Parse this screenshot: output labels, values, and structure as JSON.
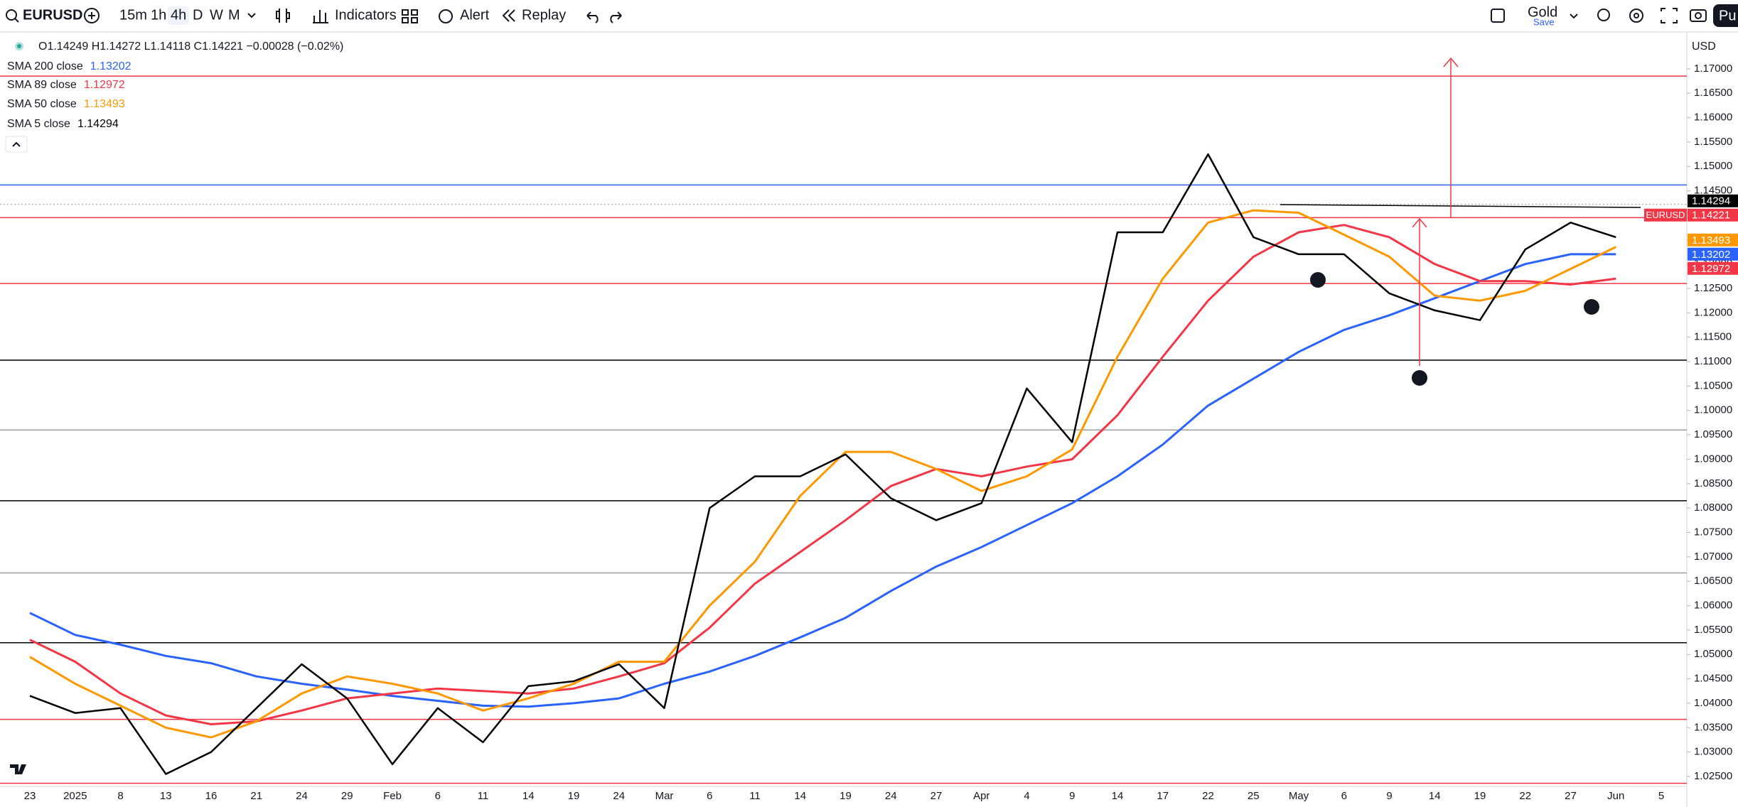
{
  "toolbar": {
    "symbol": "EURUSD",
    "intervals": [
      "15m",
      "1h",
      "4h",
      "D",
      "W",
      "M"
    ],
    "indicators": "Indicators",
    "alert": "Alert",
    "replay": "Replay",
    "layout": "Gold",
    "save": "Save",
    "publish": "Pu"
  },
  "chart_data": {
    "type": "line",
    "symbol": "EURUSD",
    "ohlc": "O1.14249 H1.14272 L1.14118 C1.14221 −0.00028 (−0.02%)",
    "currency": "USD",
    "last_price": 1.14221,
    "last_color": "#f23645",
    "categories": [
      "23",
      "2025",
      "8",
      "13",
      "16",
      "21",
      "24",
      "29",
      "Feb",
      "6",
      "11",
      "14",
      "19",
      "24",
      "Mar",
      "6",
      "11",
      "14",
      "19",
      "24",
      "27",
      "Apr",
      "4",
      "9",
      "14",
      "17",
      "22",
      "25",
      "May",
      "6",
      "9",
      "14",
      "19",
      "22",
      "27",
      "Jun",
      "5"
    ],
    "series": [
      {
        "name": "SMA 200 close",
        "color": "#2962ff",
        "last": 1.13202,
        "values": [
          1.0585,
          1.054,
          1.052,
          1.0497,
          1.0482,
          1.0455,
          1.044,
          1.0428,
          1.0415,
          1.0405,
          1.0395,
          1.0393,
          1.04,
          1.041,
          1.044,
          1.0465,
          1.0497,
          1.0535,
          1.0575,
          1.063,
          1.068,
          1.072,
          1.0765,
          1.081,
          1.0865,
          1.093,
          1.101,
          1.1065,
          1.112,
          1.1165,
          1.1195,
          1.123,
          1.1265,
          1.13,
          1.132,
          1.132,
          null
        ]
      },
      {
        "name": "SMA 89 close",
        "color": "#f23645",
        "last": 1.12972,
        "values": [
          1.053,
          1.0485,
          1.042,
          1.0375,
          1.0357,
          1.0363,
          1.0385,
          1.041,
          1.042,
          1.043,
          1.0425,
          1.042,
          1.043,
          1.0455,
          1.0482,
          1.0555,
          1.0645,
          1.071,
          1.0775,
          1.0845,
          1.088,
          1.0865,
          1.0885,
          1.09,
          1.099,
          1.111,
          1.1225,
          1.1315,
          1.1365,
          1.138,
          1.1355,
          1.13,
          1.1265,
          1.1265,
          1.1258,
          1.127,
          null
        ]
      },
      {
        "name": "SMA 50 close",
        "color": "#ff9800",
        "last": 1.13493,
        "values": [
          1.0495,
          1.044,
          1.0395,
          1.035,
          1.033,
          1.0363,
          1.042,
          1.0455,
          1.044,
          1.042,
          1.0385,
          1.041,
          1.044,
          1.0485,
          1.0485,
          1.06,
          1.069,
          1.0825,
          1.0915,
          1.0915,
          1.088,
          1.0835,
          1.0865,
          1.092,
          1.111,
          1.127,
          1.1385,
          1.141,
          1.1405,
          1.136,
          1.1315,
          1.1235,
          1.1225,
          1.1245,
          1.129,
          1.1335,
          null
        ]
      },
      {
        "name": "SMA 5 close",
        "color": "#000000",
        "last": 1.14294,
        "values": [
          1.0415,
          1.038,
          1.039,
          1.0255,
          1.03,
          1.039,
          1.048,
          1.041,
          1.0275,
          1.039,
          1.032,
          1.0435,
          1.0445,
          1.048,
          1.039,
          1.08,
          1.0865,
          1.0865,
          1.091,
          1.082,
          1.0775,
          1.081,
          1.1045,
          1.0935,
          1.1365,
          1.1365,
          1.1525,
          1.1355,
          1.132,
          1.132,
          1.124,
          1.1205,
          1.1185,
          1.133,
          1.1385,
          1.1355,
          null
        ]
      }
    ],
    "ylim": [
      1.02296,
      1.17726
    ],
    "yticks": [
      {
        "value": 1.17,
        "label": "1.17000"
      },
      {
        "value": 1.165,
        "label": "1.16500"
      },
      {
        "value": 1.16,
        "label": "1.16000"
      },
      {
        "value": 1.155,
        "label": "1.15500"
      },
      {
        "value": 1.15,
        "label": "1.15000"
      },
      {
        "value": 1.145,
        "label": "1.14500"
      },
      {
        "value": 1.14,
        "label": "1.14000"
      },
      {
        "value": 1.135,
        "label": "1.13500"
      },
      {
        "value": 1.13,
        "label": "1.13000"
      },
      {
        "value": 1.125,
        "label": "1.12500"
      },
      {
        "value": 1.12,
        "label": "1.12000"
      },
      {
        "value": 1.115,
        "label": "1.11500"
      },
      {
        "value": 1.11,
        "label": "1.11000"
      },
      {
        "value": 1.105,
        "label": "1.10500"
      },
      {
        "value": 1.1,
        "label": "1.10000"
      },
      {
        "value": 1.095,
        "label": "1.09500"
      },
      {
        "value": 1.09,
        "label": "1.09000"
      },
      {
        "value": 1.085,
        "label": "1.08500"
      },
      {
        "value": 1.08,
        "label": "1.08000"
      },
      {
        "value": 1.075,
        "label": "1.07500"
      },
      {
        "value": 1.07,
        "label": "1.07000"
      },
      {
        "value": 1.065,
        "label": "1.06500"
      },
      {
        "value": 1.06,
        "label": "1.06000"
      },
      {
        "value": 1.055,
        "label": "1.05500"
      },
      {
        "value": 1.05,
        "label": "1.05000"
      },
      {
        "value": 1.045,
        "label": "1.04500"
      },
      {
        "value": 1.04,
        "label": "1.04000"
      },
      {
        "value": 1.035,
        "label": "1.03500"
      },
      {
        "value": 1.03,
        "label": "1.03000"
      },
      {
        "value": 1.025,
        "label": "1.02500"
      }
    ],
    "levels": [
      {
        "value": 1.1685,
        "color": "#f23645"
      },
      {
        "value": 1.1462,
        "color": "#2962ff"
      },
      {
        "value": 1.1395,
        "color": "#f23645"
      },
      {
        "value": 1.126,
        "color": "#f23645"
      },
      {
        "value": 1.1103,
        "color": "#000000"
      },
      {
        "value": 1.096,
        "color": "#9e9e9e"
      },
      {
        "value": 1.0815,
        "color": "#000000"
      },
      {
        "value": 1.0667,
        "color": "#9e9e9e"
      },
      {
        "value": 1.0524,
        "color": "#000000"
      },
      {
        "value": 1.0367,
        "color": "#f23645"
      },
      {
        "value": 1.0236,
        "color": "#f23645"
      }
    ],
    "grid": false
  }
}
